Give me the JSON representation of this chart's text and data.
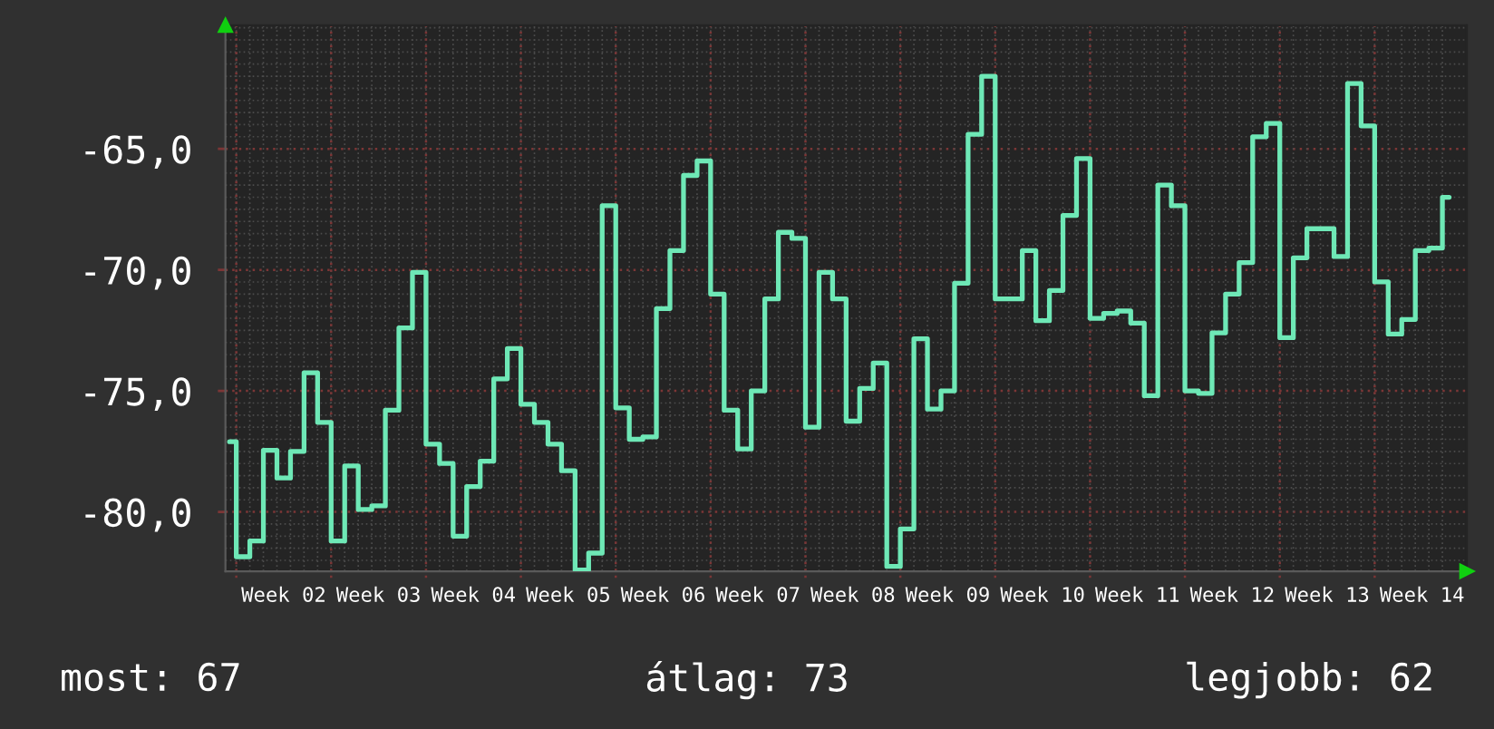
{
  "chart_data": {
    "type": "step",
    "color": "#6ee8b6",
    "categories": [
      null,
      null,
      null,
      null,
      "Week 02",
      null,
      null,
      null,
      null,
      null,
      null,
      "Week 03",
      null,
      null,
      null,
      null,
      null,
      null,
      "Week 04",
      null,
      null,
      null,
      null,
      null,
      null,
      "Week 05",
      null,
      null,
      null,
      null,
      null,
      null,
      "Week 06",
      null,
      null,
      null,
      null,
      null,
      null,
      "Week 07",
      null,
      null,
      null,
      null,
      null,
      null,
      "Week 08",
      null,
      null,
      null,
      null,
      null,
      null,
      "Week 09",
      null,
      null,
      null,
      null,
      null,
      null,
      "Week 10",
      null,
      null,
      null,
      null,
      null,
      null,
      "Week 11",
      null,
      null,
      null,
      null,
      null,
      null,
      "Week 12",
      null,
      null,
      null,
      null,
      null,
      null,
      "Week 13",
      null,
      null,
      null,
      null,
      null,
      null,
      "Week 14",
      null,
      null
    ],
    "values": [
      -77.1,
      -81.85,
      -81.2,
      -77.45,
      -78.6,
      -77.5,
      -74.25,
      -76.3,
      -81.2,
      -78.1,
      -79.9,
      -79.75,
      -75.8,
      -72.4,
      -70.1,
      -77.2,
      -78.0,
      -81.0,
      -78.95,
      -77.9,
      -74.5,
      -73.25,
      -75.55,
      -76.3,
      -77.2,
      -78.3,
      -82.4,
      -81.7,
      -67.35,
      -75.7,
      -77.0,
      -76.9,
      -71.6,
      -69.2,
      -66.1,
      -65.5,
      -71.0,
      -75.8,
      -77.4,
      -75.0,
      -71.2,
      -68.45,
      -68.7,
      -76.5,
      -70.1,
      -71.2,
      -76.25,
      -74.9,
      -73.85,
      -82.25,
      -80.7,
      -72.85,
      -75.75,
      -75.0,
      -70.55,
      -64.4,
      -62.0,
      -71.2,
      -71.2,
      -69.2,
      -72.1,
      -70.85,
      -67.75,
      -65.4,
      -72.0,
      -71.8,
      -71.7,
      -72.2,
      -75.2,
      -66.5,
      -67.35,
      -75.0,
      -75.1,
      -72.6,
      -71.0,
      -69.7,
      -64.5,
      -63.95,
      -72.8,
      -69.5,
      -68.3,
      -68.3,
      -69.45,
      -62.3,
      -64.05,
      -70.5,
      -72.65,
      -72.05,
      -69.2,
      -69.1,
      -67.0
    ],
    "ylim": [
      -82.45,
      -59.9
    ],
    "yticks": [
      {
        "value": -80,
        "label": "-80,0"
      },
      {
        "value": -75,
        "label": "-75,0"
      },
      {
        "value": -70,
        "label": "-70,0"
      },
      {
        "value": -65,
        "label": "-65,0"
      }
    ],
    "grid": true,
    "annotations": [
      "most: 67",
      "átlag: 73",
      "legjobb: 62"
    ]
  }
}
